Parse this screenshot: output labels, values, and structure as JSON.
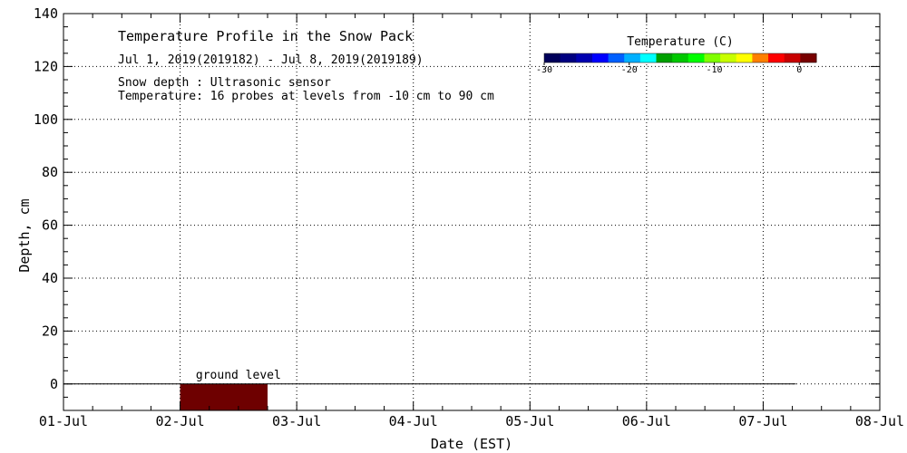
{
  "chart_data": {
    "type": "heatmap",
    "title": "Temperature Profile in the Snow Pack",
    "date_range": "Jul  1, 2019(2019182) - Jul  8, 2019(2019189)",
    "notes": [
      "Snow depth : Ultrasonic sensor",
      "Temperature: 16 probes at levels from -10 cm to 90 cm"
    ],
    "xlabel": "Date (EST)",
    "ylabel": "Depth, cm",
    "x_ticks": [
      "01-Jul",
      "02-Jul",
      "03-Jul",
      "04-Jul",
      "05-Jul",
      "06-Jul",
      "07-Jul",
      "08-Jul"
    ],
    "xlim_days": [
      0,
      7
    ],
    "ylim": [
      -10,
      140
    ],
    "y_ticks": [
      0,
      20,
      40,
      60,
      80,
      100,
      120,
      140
    ],
    "grid": true,
    "ground_level_label": "ground level",
    "ground_level_value": 0,
    "ground_line_end_day": 6.28,
    "colorbar": {
      "title": "Temperature (C)",
      "range": [
        -30,
        2
      ],
      "tick_values": [
        -30,
        -20,
        -10,
        0
      ],
      "tick_labels": [
        "-30",
        "-20",
        "-10",
        "0"
      ],
      "colors": [
        "#00005a",
        "#000080",
        "#0000b0",
        "#0000ff",
        "#0060ff",
        "#00b0ff",
        "#00ffff",
        "#00a000",
        "#00c800",
        "#00ff00",
        "#80ff00",
        "#c8ff00",
        "#ffff00",
        "#ff8000",
        "#ff0000",
        "#c80000",
        "#780000"
      ]
    },
    "cells": [
      {
        "x0_day": 1.0,
        "x1_day": 1.75,
        "y0": -10,
        "y1": 0,
        "color": "#6e0000"
      }
    ]
  }
}
